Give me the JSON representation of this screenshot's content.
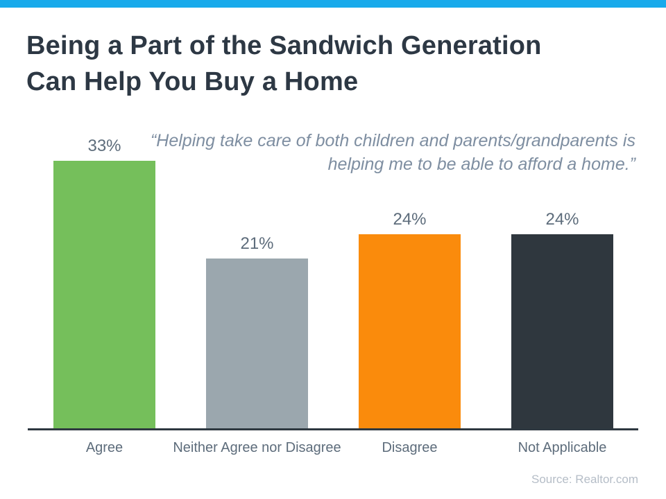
{
  "accent": {
    "top_bar_color": "#18AAEB"
  },
  "title": {
    "line1": "Being a Part of the Sandwich Generation",
    "line2": "Can Help You Buy a Home"
  },
  "quote": {
    "line1": "“Helping take care of both children and parents/grandparents is",
    "line2": "helping me to be able to afford a home.”"
  },
  "chart_data": {
    "type": "bar",
    "categories": [
      "Agree",
      "Neither Agree nor Disagree",
      "Disagree",
      "Not Applicable"
    ],
    "values": [
      33,
      21,
      24,
      24
    ],
    "value_labels": [
      "33%",
      "21%",
      "24%",
      "24%"
    ],
    "bar_colors": [
      "#75BF5B",
      "#9BA7AE",
      "#FA8B0C",
      "#2F373E"
    ],
    "title": "",
    "xlabel": "",
    "ylabel": "",
    "ylim": [
      0,
      35
    ],
    "grid": false,
    "legend": false,
    "axis_line_color": "#2E3840",
    "label_color": "#5D6C7B"
  },
  "source": {
    "text": "Source: Realtor.com"
  }
}
